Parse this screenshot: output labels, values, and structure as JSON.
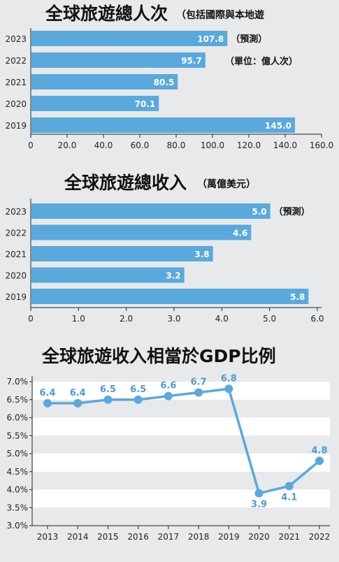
{
  "chart_data": [
    {
      "type": "bar",
      "orientation": "horizontal",
      "title": "全球旅遊總人次",
      "subtitle": "（包括國際與本地遊",
      "unit_note": "（單位：億人次）",
      "categories": [
        "2023",
        "2022",
        "2021",
        "2020",
        "2019"
      ],
      "values": [
        107.8,
        95.7,
        80.5,
        70.1,
        145.0
      ],
      "value_labels": [
        "107.8",
        "95.7",
        "80.5",
        "70.1",
        "145.0"
      ],
      "annotation": {
        "category": "2023",
        "text": "（預測）"
      },
      "xlim": [
        0,
        160
      ],
      "xticks": [
        "0",
        "20.0",
        "40.0",
        "60.0",
        "80.0",
        "100.0",
        "120.0",
        "140.0",
        "160.0"
      ],
      "color": "#5aa9dc"
    },
    {
      "type": "bar",
      "orientation": "horizontal",
      "title": "全球旅遊總收入",
      "subtitle": "（萬億美元）",
      "categories": [
        "2023",
        "2022",
        "2021",
        "2020",
        "2019"
      ],
      "values": [
        5.0,
        4.6,
        3.8,
        3.2,
        5.8
      ],
      "value_labels": [
        "5.0",
        "4.6",
        "3.8",
        "3.2",
        "5.8"
      ],
      "annotation": {
        "category": "2023",
        "text": "（預測）"
      },
      "xlim": [
        0,
        6.0
      ],
      "xticks": [
        "0",
        "1.0",
        "2.0",
        "3.0",
        "4.0",
        "5.0",
        "6.0"
      ],
      "color": "#5aa9dc"
    },
    {
      "type": "line",
      "title": "全球旅遊收入相當於GDP比例",
      "categories": [
        "2013",
        "2014",
        "2015",
        "2016",
        "2017",
        "2018",
        "2019",
        "2020",
        "2021",
        "2022"
      ],
      "values": [
        6.4,
        6.4,
        6.5,
        6.5,
        6.6,
        6.7,
        6.8,
        3.9,
        4.1,
        4.8
      ],
      "value_labels": [
        "6.4",
        "6.4",
        "6.5",
        "6.5",
        "6.6",
        "6.7",
        "6.8",
        "3.9",
        "4.1",
        "4.8"
      ],
      "ylim": [
        3.0,
        7.0
      ],
      "yticks": [
        "7.0%",
        "6.5%",
        "6.0%",
        "5.5%",
        "5.0%",
        "4.5%",
        "4.0%",
        "3.5%",
        "3.0%"
      ],
      "color": "#5aa9dc",
      "grid": "alternating-bands"
    }
  ]
}
